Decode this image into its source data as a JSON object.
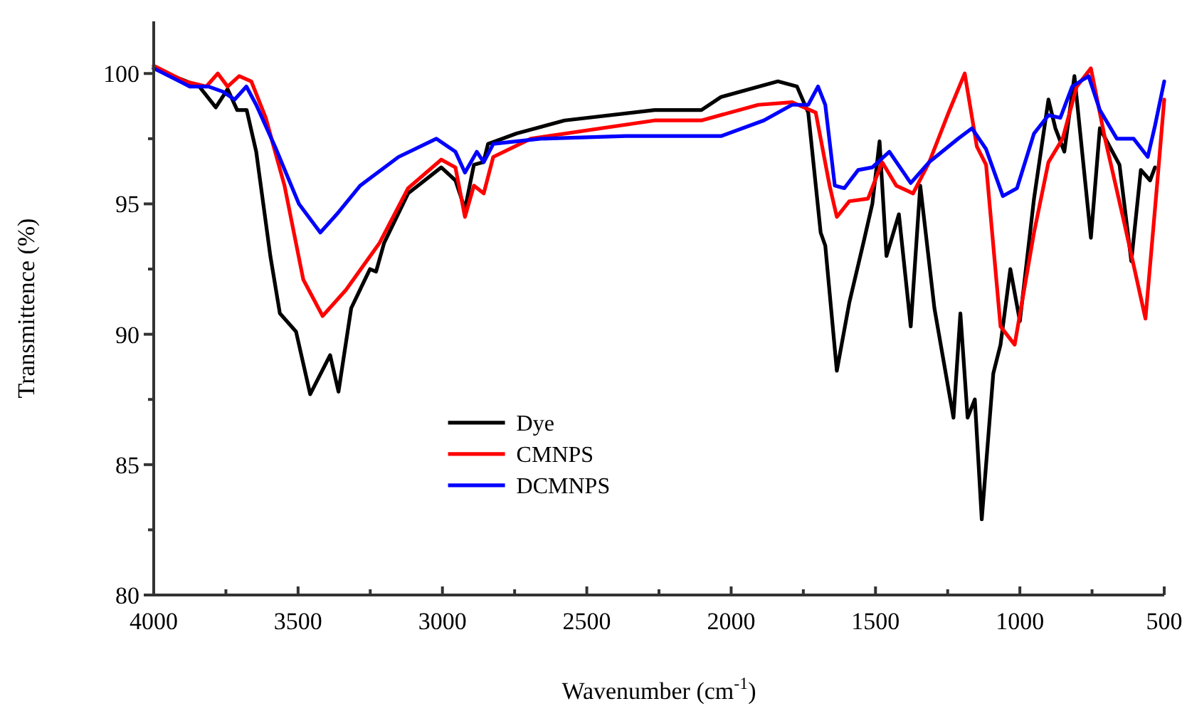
{
  "chart_data": {
    "type": "line",
    "xlabel": "Wavenumber (cm$^{-1}$)",
    "ylabel": "Transmittence (%)",
    "xlim": [
      4000,
      500
    ],
    "ylim": [
      80,
      102
    ],
    "xticks": [
      4000,
      {
        "value": 3750,
        "label": null
      },
      3500,
      {
        "value": 3250,
        "label": null
      },
      3000,
      {
        "value": 2750,
        "label": null
      },
      2500,
      {
        "value": 2250,
        "label": null
      },
      2000,
      {
        "value": 1750,
        "label": null
      },
      1500,
      {
        "value": 1250,
        "label": null
      },
      1000,
      {
        "value": 750,
        "label": null
      },
      500
    ],
    "yticks": [
      80,
      {
        "value": 82.5,
        "label": null
      },
      85,
      {
        "value": 87.5,
        "label": null
      },
      90,
      {
        "value": 92.5,
        "label": null
      },
      95,
      {
        "value": 97.5,
        "label": null
      },
      100
    ],
    "grid": false,
    "legend": "center",
    "marker": "none",
    "line_style": "solid",
    "series": [
      {
        "name": "Dye",
        "color": "#000000",
        "x": [
          4000,
          3842,
          3785,
          3744,
          3711,
          3678,
          3645,
          3596,
          3563,
          3507,
          3458,
          3389,
          3360,
          3316,
          3251,
          3230,
          3202,
          3119,
          3004,
          2955,
          2922,
          2891,
          2858,
          2842,
          2743,
          2577,
          2265,
          2103,
          2035,
          1838,
          1772,
          1733,
          1690,
          1674,
          1634,
          1591,
          1542,
          1511,
          1486,
          1462,
          1419,
          1378,
          1345,
          1296,
          1230,
          1206,
          1181,
          1156,
          1132,
          1092,
          1067,
          1033,
          1000,
          951,
          901,
          877,
          846,
          811,
          754,
          723,
          655,
          614,
          581,
          549,
          532
        ],
        "values": [
          100.2,
          99.5,
          98.7,
          99.4,
          98.6,
          98.6,
          97.0,
          93.0,
          90.8,
          90.1,
          87.7,
          89.2,
          87.8,
          91.0,
          92.5,
          92.4,
          93.5,
          95.4,
          96.4,
          95.9,
          94.8,
          96.5,
          96.6,
          97.3,
          97.7,
          98.2,
          98.6,
          98.6,
          99.1,
          99.7,
          99.5,
          98.5,
          93.9,
          93.4,
          88.6,
          91.2,
          93.5,
          95.0,
          97.4,
          93.0,
          94.6,
          90.3,
          95.7,
          91.0,
          86.8,
          90.8,
          86.8,
          87.5,
          82.9,
          88.5,
          89.6,
          92.5,
          90.5,
          95.2,
          99.0,
          97.9,
          97.0,
          99.9,
          93.7,
          97.9,
          96.5,
          92.8,
          96.3,
          95.9,
          96.4
        ]
      },
      {
        "name": "CMNPS",
        "color": "#ff0000",
        "x": [
          4000,
          3892,
          3818,
          3778,
          3744,
          3704,
          3662,
          3612,
          3547,
          3482,
          3415,
          3334,
          3218,
          3119,
          3004,
          2955,
          2922,
          2891,
          2857,
          2824,
          2694,
          2265,
          2103,
          1906,
          1789,
          1748,
          1707,
          1659,
          1634,
          1591,
          1526,
          1477,
          1428,
          1370,
          1314,
          1247,
          1191,
          1149,
          1117,
          1067,
          1018,
          951,
          901,
          852,
          803,
          754,
          705,
          639,
          565,
          525,
          500
        ],
        "values": [
          100.3,
          99.7,
          99.5,
          100.0,
          99.5,
          99.9,
          99.7,
          98.3,
          95.7,
          92.1,
          90.7,
          91.7,
          93.5,
          95.6,
          96.7,
          96.4,
          94.5,
          95.7,
          95.4,
          96.8,
          97.5,
          98.2,
          98.2,
          98.8,
          98.9,
          98.7,
          98.5,
          95.7,
          94.5,
          95.1,
          95.2,
          96.6,
          95.7,
          95.4,
          96.6,
          98.5,
          100.0,
          97.2,
          96.5,
          90.3,
          89.6,
          93.9,
          96.6,
          97.5,
          99.5,
          100.2,
          97.5,
          94.3,
          90.6,
          95.7,
          99.0
        ]
      },
      {
        "name": "DCMNPS",
        "color": "#0000ff",
        "x": [
          4000,
          3875,
          3810,
          3760,
          3720,
          3679,
          3645,
          3580,
          3497,
          3423,
          3366,
          3285,
          3152,
          3021,
          2955,
          2922,
          2881,
          2857,
          2824,
          2660,
          2364,
          2035,
          1887,
          1789,
          1733,
          1699,
          1674,
          1641,
          1608,
          1560,
          1511,
          1452,
          1378,
          1314,
          1214,
          1166,
          1117,
          1059,
          1010,
          951,
          901,
          860,
          819,
          762,
          723,
          664,
          606,
          557,
          532,
          500
        ],
        "values": [
          100.2,
          99.5,
          99.5,
          99.3,
          99.0,
          99.5,
          98.8,
          97.2,
          95.0,
          93.9,
          94.6,
          95.7,
          96.8,
          97.5,
          97.0,
          96.2,
          97.0,
          96.6,
          97.3,
          97.5,
          97.6,
          97.6,
          98.2,
          98.8,
          98.8,
          99.5,
          98.8,
          95.7,
          95.6,
          96.3,
          96.4,
          97.0,
          95.8,
          96.6,
          97.5,
          97.9,
          97.1,
          95.3,
          95.6,
          97.7,
          98.4,
          98.3,
          99.5,
          99.9,
          98.6,
          97.5,
          97.5,
          96.8,
          98.0,
          99.7
        ]
      }
    ]
  }
}
